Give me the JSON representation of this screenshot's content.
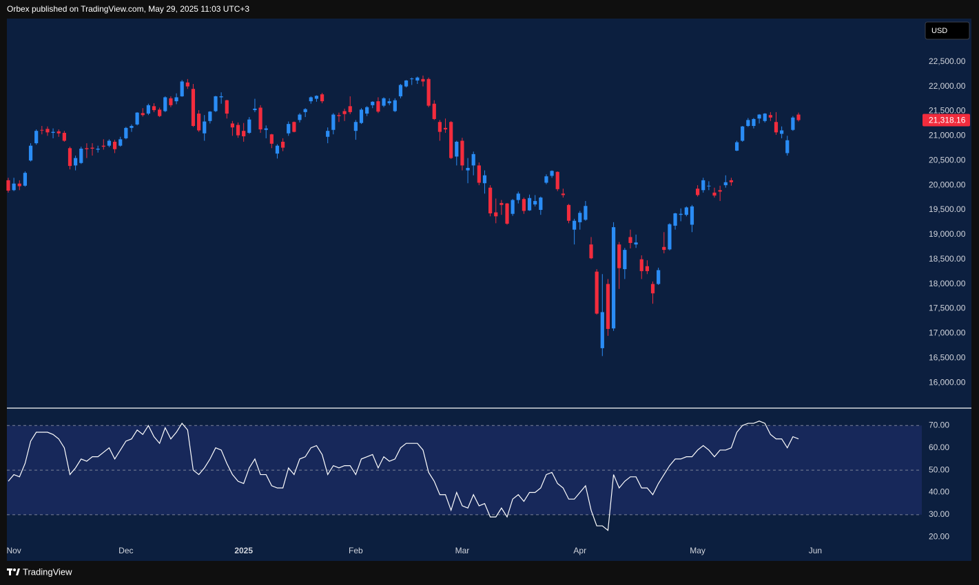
{
  "header": "Orbex published on TradingView.com, May 29, 2025 11:03 UTC+3",
  "currency": "USD",
  "footer": "TradingView",
  "chart_data": [
    {
      "type": "candlestick",
      "up_color": "#2a8cf5",
      "down_color": "#f22c3d",
      "last_price_label": "21,318.16",
      "ylim": [
        15500,
        23360
      ],
      "yticks": [
        {
          "value": 16000,
          "label": "16,000.00"
        },
        {
          "value": 16500,
          "label": "16,500.00"
        },
        {
          "value": 17000,
          "label": "17,000.00"
        },
        {
          "value": 17500,
          "label": "17,500.00"
        },
        {
          "value": 18000,
          "label": "18,000.00"
        },
        {
          "value": 18500,
          "label": "18,500.00"
        },
        {
          "value": 19000,
          "label": "19,000.00"
        },
        {
          "value": 19500,
          "label": "19,500.00"
        },
        {
          "value": 20000,
          "label": "20,000.00"
        },
        {
          "value": 20500,
          "label": "20,500.00"
        },
        {
          "value": 21000,
          "label": "21,000.00"
        },
        {
          "value": 21500,
          "label": "21,500.00"
        },
        {
          "value": 22000,
          "label": "22,000.00"
        },
        {
          "value": 22500,
          "label": "22,500.00"
        }
      ],
      "categories": [
        null,
        "Nov",
        null,
        null,
        null,
        null,
        null,
        null,
        null,
        null,
        null,
        null,
        null,
        null,
        null,
        null,
        null,
        null,
        null,
        null,
        null,
        "Dec",
        null,
        null,
        null,
        null,
        null,
        null,
        null,
        null,
        null,
        null,
        null,
        null,
        null,
        null,
        null,
        null,
        null,
        null,
        null,
        null,
        "2025",
        null,
        null,
        null,
        null,
        null,
        null,
        null,
        null,
        null,
        null,
        null,
        null,
        null,
        null,
        null,
        null,
        null,
        null,
        null,
        "Feb",
        null,
        null,
        null,
        null,
        null,
        null,
        null,
        null,
        null,
        null,
        null,
        null,
        null,
        null,
        null,
        null,
        null,
        null,
        "Mar",
        null,
        null,
        null,
        null,
        null,
        null,
        null,
        null,
        null,
        null,
        null,
        null,
        null,
        null,
        null,
        null,
        null,
        null,
        null,
        null,
        "Apr",
        null,
        null,
        null,
        null,
        null,
        null,
        null,
        null,
        null,
        null,
        null,
        null,
        null,
        null,
        null,
        null,
        null,
        null,
        null,
        null,
        "May",
        null,
        null,
        null,
        null,
        null,
        null,
        null,
        null,
        null,
        null,
        null,
        null,
        null,
        null,
        null,
        null,
        null,
        null,
        null,
        null,
        "Jun",
        null,
        null,
        null,
        null,
        null,
        null,
        null,
        null,
        null,
        null,
        null,
        null,
        null,
        null,
        null,
        null,
        null,
        null
      ],
      "open": [
        20100,
        19900,
        20033,
        19990,
        20500,
        20850,
        21120,
        21140,
        21060,
        21090,
        21060,
        20750,
        20400,
        20450,
        20750,
        20760,
        20720,
        20800,
        20800,
        20880,
        20800,
        20950,
        21160,
        21230,
        21460,
        21450,
        21600,
        21530,
        21500,
        21760,
        21700,
        21800,
        22080,
        21950,
        21450,
        21050,
        21300,
        21500,
        21780,
        21720,
        21250,
        21220,
        21100,
        21060,
        21520,
        21570,
        21120,
        21030,
        20640,
        20880,
        21050,
        21280,
        21320,
        21480,
        21700,
        21750,
        21840,
        20980,
        21120,
        21420,
        21500,
        21600,
        21100,
        21260,
        21450,
        21620,
        21700,
        21610,
        21660,
        21500,
        21800,
        22000,
        22150,
        22120,
        22150,
        22150,
        21650,
        21280,
        21160,
        21280,
        20580,
        20900,
        20300,
        20400,
        20400,
        20040,
        19950,
        19450,
        19640,
        19630,
        19420,
        19700,
        19720,
        19490,
        19610,
        19500,
        20050,
        20190,
        20270,
        19830,
        19600,
        19100,
        19250,
        19300,
        18800,
        18250,
        16700,
        18000,
        17100,
        18800,
        18300,
        18950,
        18800,
        18500,
        18360,
        18000,
        18000,
        18750,
        18700,
        19180,
        19400,
        19400,
        19200,
        19930,
        19900,
        19980,
        19850,
        19900,
        20000,
        20100,
        20700,
        20900,
        21200,
        21200,
        21350,
        21300,
        21420,
        21280,
        21040,
        20650,
        21120,
        21430,
        null,
        null,
        null,
        null,
        null,
        null,
        null,
        null,
        null,
        null,
        null,
        null,
        null,
        null,
        null,
        null,
        null,
        null,
        null,
        null,
        null
      ],
      "high": [
        20150,
        20150,
        20100,
        20280,
        20850,
        21130,
        21200,
        21190,
        21150,
        21130,
        21100,
        20780,
        20600,
        20780,
        20850,
        20850,
        20800,
        20930,
        20930,
        20920,
        20980,
        21180,
        21230,
        21480,
        21560,
        21650,
        21660,
        21570,
        21800,
        21800,
        21860,
        22130,
        22150,
        22050,
        21520,
        21420,
        21500,
        21810,
        21880,
        21730,
        21300,
        21270,
        21260,
        21380,
        21750,
        21620,
        21210,
        21040,
        20830,
        20950,
        21290,
        21290,
        21460,
        21560,
        21800,
        21820,
        21870,
        21170,
        21460,
        21470,
        21550,
        21800,
        21320,
        21560,
        21600,
        21700,
        21780,
        21780,
        21760,
        21760,
        22050,
        22130,
        22180,
        22200,
        22220,
        22180,
        21720,
        21320,
        21350,
        21300,
        20900,
        20960,
        20550,
        20680,
        20460,
        20300,
        20000,
        19730,
        19700,
        19640,
        19720,
        19870,
        19750,
        19810,
        19800,
        19770,
        20220,
        20300,
        20280,
        19930,
        19620,
        19320,
        19480,
        19680,
        18950,
        18300,
        18200,
        18100,
        19250,
        18850,
        18730,
        19100,
        19000,
        18580,
        18480,
        18050,
        18330,
        19050,
        19230,
        19440,
        19530,
        19570,
        19600,
        20000,
        20150,
        20080,
        19950,
        19990,
        20200,
        20150,
        20900,
        21200,
        21360,
        21360,
        21440,
        21460,
        21480,
        21480,
        21190,
        21000,
        21400,
        21470,
        null,
        null,
        null,
        null,
        null,
        null,
        null,
        null,
        null,
        null,
        null,
        null,
        null,
        null,
        null,
        null,
        null,
        null,
        null,
        null,
        null
      ],
      "low": [
        19850,
        19880,
        19900,
        19970,
        20480,
        20820,
        21030,
        21000,
        20950,
        20980,
        20880,
        20320,
        20300,
        20430,
        20550,
        20600,
        20660,
        20720,
        20770,
        20650,
        20780,
        20930,
        21080,
        21210,
        21390,
        21420,
        21480,
        21380,
        21480,
        21580,
        21640,
        21790,
        21950,
        21180,
        21080,
        20900,
        21250,
        21480,
        21650,
        21350,
        21000,
        20960,
        20880,
        21040,
        21480,
        21060,
        20950,
        20750,
        20540,
        20690,
        21000,
        21070,
        21270,
        21380,
        21650,
        21690,
        21660,
        20850,
        21030,
        21280,
        21300,
        21440,
        20920,
        21240,
        21400,
        21560,
        21460,
        21580,
        21620,
        21480,
        21760,
        21980,
        22030,
        22050,
        22000,
        21580,
        21320,
        20900,
        21060,
        20530,
        20400,
        20300,
        20040,
        20200,
        20000,
        19830,
        19370,
        19230,
        19400,
        19200,
        19380,
        19630,
        19420,
        19480,
        19570,
        19400,
        20020,
        20150,
        19880,
        19750,
        19230,
        18800,
        19100,
        19280,
        18500,
        17380,
        16540,
        16950,
        17050,
        17900,
        18100,
        18720,
        18730,
        18100,
        18200,
        17600,
        17980,
        18620,
        18680,
        19100,
        19270,
        19370,
        19050,
        19770,
        19850,
        19900,
        19750,
        19680,
        19950,
        19990,
        20690,
        20880,
        21180,
        21150,
        21250,
        21270,
        21300,
        21020,
        20950,
        20600,
        21100,
        21290,
        null,
        null,
        null,
        null,
        null,
        null,
        null,
        null,
        null,
        null,
        null,
        null,
        null,
        null,
        null,
        null,
        null,
        null,
        null,
        null,
        null
      ],
      "close": [
        19890,
        20033,
        19980,
        20250,
        20800,
        21100,
        21117,
        21070,
        21080,
        21050,
        20900,
        20390,
        20550,
        20740,
        20730,
        20740,
        20740,
        20780,
        20900,
        20730,
        20930,
        21160,
        21200,
        21470,
        21420,
        21620,
        21520,
        21400,
        21780,
        21620,
        21780,
        22100,
        22000,
        21200,
        21110,
        21290,
        21490,
        21800,
        21800,
        21450,
        21170,
        21010,
        20990,
        21330,
        21550,
        21130,
        21150,
        20840,
        20800,
        20760,
        21240,
        21080,
        21430,
        21540,
        21780,
        21810,
        21700,
        21100,
        21430,
        21400,
        21440,
        21480,
        21280,
        21530,
        21580,
        21690,
        21490,
        21760,
        21700,
        21720,
        22030,
        22120,
        22160,
        22180,
        22100,
        21610,
        21340,
        21080,
        21130,
        20550,
        20880,
        20400,
        20350,
        20630,
        20050,
        20200,
        19430,
        19370,
        19600,
        19220,
        19700,
        19830,
        19480,
        19740,
        19680,
        19750,
        20180,
        20290,
        19920,
        19800,
        19280,
        19280,
        19440,
        19580,
        18520,
        17400,
        17430,
        17090,
        19150,
        18320,
        18690,
        18830,
        18840,
        18260,
        18260,
        17810,
        18280,
        18690,
        19210,
        19430,
        19420,
        19550,
        19570,
        19800,
        20100,
        19990,
        19790,
        19870,
        20060,
        20060,
        20870,
        21190,
        21320,
        21340,
        21430,
        21450,
        21370,
        21070,
        21110,
        20910,
        21370,
        21318.16,
        null,
        null,
        null,
        null,
        null,
        null,
        null,
        null,
        null,
        null,
        null,
        null,
        null,
        null,
        null,
        null,
        null,
        null,
        null,
        null,
        null
      ]
    },
    {
      "type": "line",
      "color": "#ffffff",
      "band_fill": "#17285a",
      "bands": [
        70,
        50,
        30
      ],
      "ylim": [
        17,
        77.5
      ],
      "yticks": [
        {
          "value": 20,
          "label": "20.00"
        },
        {
          "value": 30,
          "label": "30.00"
        },
        {
          "value": 40,
          "label": "40.00"
        },
        {
          "value": 50,
          "label": "50.00"
        },
        {
          "value": 60,
          "label": "60.00"
        },
        {
          "value": 70,
          "label": "70.00"
        }
      ],
      "values": [
        45,
        48,
        47,
        53,
        63,
        67,
        67,
        67,
        66,
        64,
        60,
        48,
        51,
        55,
        54,
        56,
        56,
        58,
        60,
        55,
        59,
        63,
        64,
        68,
        66,
        70,
        65,
        62,
        69,
        64,
        67,
        71,
        68,
        50,
        48,
        51,
        55,
        60,
        59,
        53,
        48,
        45,
        44,
        51,
        55,
        48,
        48,
        43,
        42,
        42,
        51,
        48,
        55,
        56,
        60,
        61,
        57,
        48,
        52,
        51,
        52,
        52,
        48,
        55,
        56,
        57,
        51,
        56,
        54,
        55,
        60,
        62,
        62,
        62,
        59,
        49,
        45,
        39,
        39,
        32,
        40,
        34,
        33,
        39,
        34,
        35,
        29,
        29,
        33,
        29,
        37,
        39,
        36,
        40,
        40,
        42,
        48,
        49,
        44,
        42,
        37,
        37,
        40,
        43,
        32,
        25,
        25,
        23,
        48,
        42,
        45,
        47,
        47,
        42,
        42,
        39,
        44,
        48,
        52,
        55,
        55,
        56,
        56,
        59,
        61,
        59,
        56,
        59,
        59,
        60,
        67,
        70,
        71,
        71,
        72,
        71,
        66,
        64,
        64,
        60,
        65,
        64,
        null,
        null,
        null,
        null,
        null,
        null,
        null,
        null,
        null,
        null,
        null,
        null,
        null,
        null,
        null,
        null,
        null,
        null,
        null,
        null,
        null
      ]
    }
  ]
}
